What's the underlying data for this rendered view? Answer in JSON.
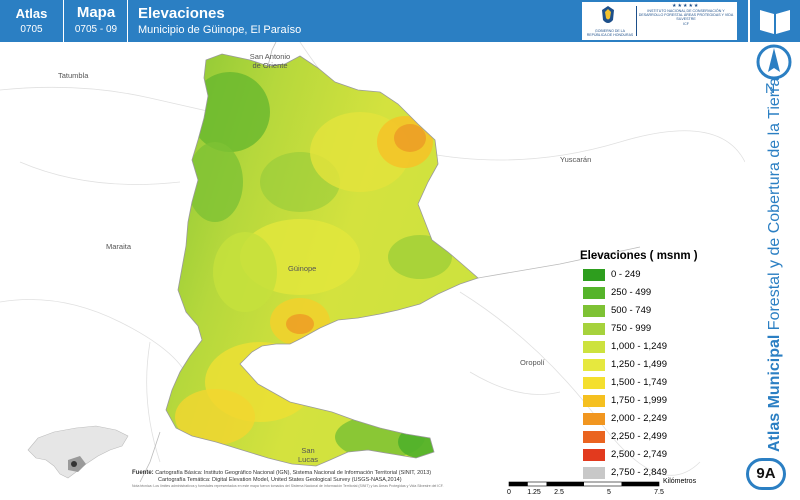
{
  "header": {
    "atlas_label": "Atlas",
    "atlas_code": "0705",
    "mapa_label": "Mapa",
    "mapa_code": "0705 - 09",
    "title": "Elevaciones",
    "subtitle": "Municipio de Güinope, El Paraíso",
    "gov_text": "GOBIERNO DE LA REPÚBLICA DE HONDURAS",
    "inst_text": "INSTITUTO NACIONAL DE CONSERVACIÓN Y DESARROLLO FORESTAL ÁREAS PROTEGIDAS Y VIDA SILVESTRE",
    "inst_short": "ICF"
  },
  "sidebar": {
    "north_label": "N",
    "vertical_bold": "Atlas Municipal",
    "vertical_rest": " Forestal y de Cobertura de la Tierra",
    "badge": "9A"
  },
  "places": {
    "tatumbla": "Tatumbla",
    "san_antonio": "San Antonio de Oriente",
    "yuscaran": "Yuscarán",
    "maraita": "Maraita",
    "guinope": "Güinope",
    "oropoli": "Oropolí",
    "san_lucas": "San Lucas"
  },
  "legend": {
    "title": "Elevaciones ( msnm )",
    "items": [
      {
        "label": "0 - 249",
        "color": "#2e9e1e"
      },
      {
        "label": "250 - 499",
        "color": "#55b42a"
      },
      {
        "label": "500 - 749",
        "color": "#7ec234"
      },
      {
        "label": "750 - 999",
        "color": "#a6d23c"
      },
      {
        "label": "1,000 - 1,249",
        "color": "#cde23e"
      },
      {
        "label": "1,250 - 1,499",
        "color": "#e6e83e"
      },
      {
        "label": "1,500 - 1,749",
        "color": "#f4df2e"
      },
      {
        "label": "1,750 - 1,999",
        "color": "#f5c020"
      },
      {
        "label": "2,000 - 2,249",
        "color": "#f19620"
      },
      {
        "label": "2,250 - 2,499",
        "color": "#ea6420"
      },
      {
        "label": "2,500 - 2,749",
        "color": "#e23a1e"
      },
      {
        "label": "2,750 - 2,849",
        "color": "#c8c8c8"
      }
    ]
  },
  "footer": {
    "fuente_label": "Fuente:",
    "line1": "Cartografía Básica: Instituto Geográfico Nacional (IGN), Sistema Nacional de Información Territorial (SINIT, 2013)",
    "line2": "Cartografía Temática: Digital Elevation Model, United States Geological Survey (USGS-NASA,2014)",
    "fine": "Nota técnica: Los límites administrativos y forestales representados en este mapa fueron tomados del Sistema Nacional de Información Territorial (SINIT) y las Áreas Protegidas y Vida Silvestre del ICF."
  },
  "scale": {
    "labels": [
      "0",
      "1.25",
      "2.5",
      "5",
      "7.5"
    ],
    "unit": "Kilómetros"
  }
}
